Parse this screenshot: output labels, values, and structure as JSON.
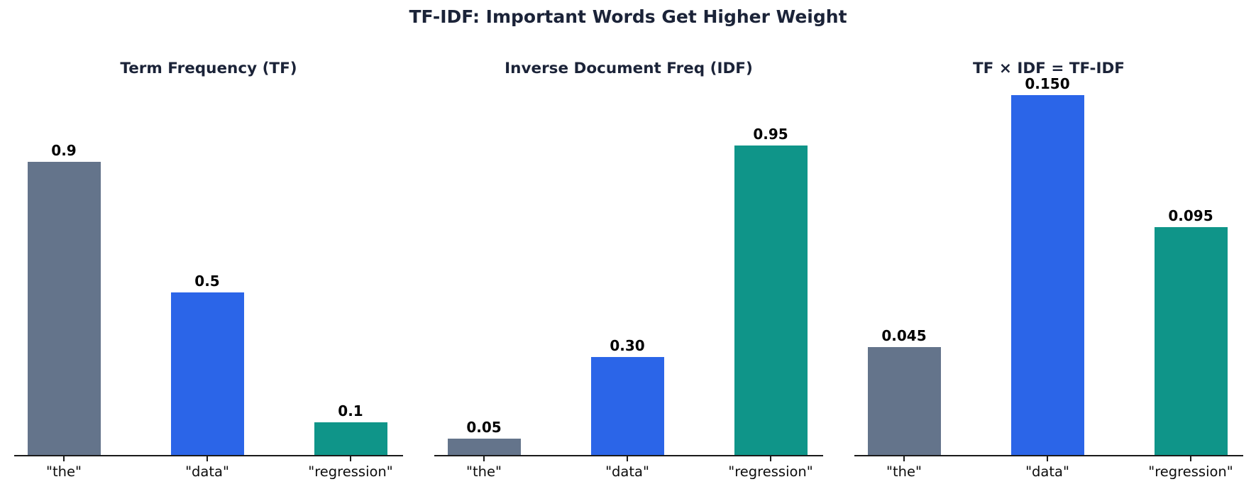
{
  "figure": {
    "suptitle": "TF-IDF: Important Words Get Higher Weight",
    "background_color": "#ffffff",
    "title_color": "#1b2338",
    "value_label_color": "#000000",
    "tick_label_color": "#0d0d0d",
    "axis_color": "#1a1a1a"
  },
  "palette": {
    "the": "#64748b",
    "data": "#2b65e8",
    "regression": "#0f9589"
  },
  "chart_data": [
    {
      "type": "bar",
      "title": "Term Frequency (TF)",
      "categories": [
        "\"the\"",
        "\"data\"",
        "\"regression\""
      ],
      "values": [
        0.9,
        0.5,
        0.1
      ],
      "value_labels": [
        "0.9",
        "0.5",
        "0.1"
      ],
      "bar_colors": [
        "#64748b",
        "#2b65e8",
        "#0f9589"
      ],
      "ylim": [
        0,
        1.19
      ],
      "grid": false,
      "legend": "none"
    },
    {
      "type": "bar",
      "title": "Inverse Document Freq (IDF)",
      "categories": [
        "\"the\"",
        "\"data\"",
        "\"regression\""
      ],
      "values": [
        0.05,
        0.3,
        0.95
      ],
      "value_labels": [
        "0.05",
        "0.30",
        "0.95"
      ],
      "bar_colors": [
        "#64748b",
        "#2b65e8",
        "#0f9589"
      ],
      "ylim": [
        0,
        1.19
      ],
      "grid": false,
      "legend": "none"
    },
    {
      "type": "bar",
      "title": "TF × IDF = TF-IDF",
      "categories": [
        "\"the\"",
        "\"data\"",
        "\"regression\""
      ],
      "values": [
        0.045,
        0.15,
        0.095
      ],
      "value_labels": [
        "0.045",
        "0.150",
        "0.095"
      ],
      "bar_colors": [
        "#64748b",
        "#2b65e8",
        "#0f9589"
      ],
      "ylim": [
        0,
        0.1615
      ],
      "grid": false,
      "legend": "none"
    }
  ]
}
